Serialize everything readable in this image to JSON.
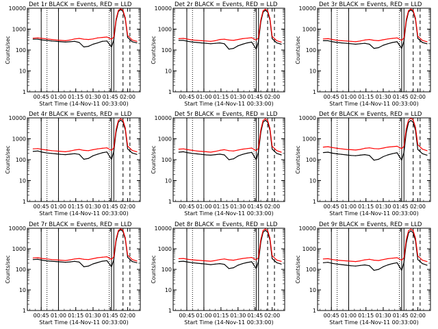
{
  "figure": {
    "title_prefix": "Det",
    "title_suffix": "BLACK = Events, RED = LLD",
    "ylabel": "Counts/sec",
    "xlabel": "Start Time (14-Nov-11 00:33:00)"
  },
  "colors": {
    "events": "#000000",
    "lld": "#ff0000",
    "axis": "#000000"
  },
  "chart_data": [
    {
      "type": "line",
      "detector": "1r",
      "x": [
        "00:38",
        "00:42",
        "00:46",
        "00:50",
        "00:54",
        "00:58",
        "01:02",
        "01:06",
        "01:10",
        "01:14",
        "01:18",
        "01:22",
        "01:26",
        "01:30",
        "01:34",
        "01:38",
        "01:42",
        "01:46",
        "01:48",
        "01:50",
        "01:52",
        "01:54",
        "01:56",
        "01:58",
        "02:00",
        "02:04",
        "02:08"
      ],
      "xticks": [
        "00:45",
        "01:00",
        "01:15",
        "01:30",
        "01:45",
        "02:00"
      ],
      "yticks": [
        "1",
        "10",
        "100",
        "1000",
        "10000"
      ],
      "ylim": [
        1,
        10000
      ],
      "yscale": "log",
      "series": [
        {
          "key": "events",
          "values": [
            330,
            330,
            300,
            290,
            270,
            260,
            250,
            240,
            250,
            260,
            230,
            140,
            150,
            190,
            220,
            260,
            270,
            140,
            300,
            2500,
            7000,
            8500,
            7000,
            3000,
            400,
            250,
            220
          ]
        },
        {
          "key": "lld",
          "values": [
            370,
            380,
            360,
            340,
            320,
            300,
            290,
            280,
            300,
            340,
            360,
            330,
            320,
            340,
            380,
            400,
            420,
            330,
            420,
            3000,
            8000,
            9500,
            8000,
            3500,
            500,
            300,
            260
          ]
        }
      ],
      "vlines_solid": [
        "00:45",
        "01:00",
        "01:46",
        "01:48"
      ],
      "vlines_dotted": [
        "00:50",
        "01:44"
      ],
      "vlines_dashed": [
        "01:56",
        "02:02"
      ]
    },
    {
      "type": "line",
      "detector": "2r",
      "x": [
        "00:38",
        "00:42",
        "00:46",
        "00:50",
        "00:54",
        "00:58",
        "01:02",
        "01:06",
        "01:10",
        "01:14",
        "01:18",
        "01:22",
        "01:26",
        "01:30",
        "01:34",
        "01:38",
        "01:42",
        "01:46",
        "01:48",
        "01:50",
        "01:52",
        "01:54",
        "01:56",
        "01:58",
        "02:00",
        "02:04",
        "02:08"
      ],
      "xticks": [
        "00:45",
        "01:00",
        "01:15",
        "01:30",
        "01:45",
        "02:00"
      ],
      "yticks": [
        "1",
        "10",
        "100",
        "1000",
        "10000"
      ],
      "ylim": [
        1,
        10000
      ],
      "yscale": "log",
      "series": [
        {
          "key": "events",
          "values": [
            290,
            290,
            260,
            240,
            230,
            220,
            210,
            200,
            210,
            220,
            200,
            110,
            120,
            160,
            190,
            220,
            240,
            110,
            260,
            2200,
            6500,
            8000,
            6500,
            2800,
            350,
            220,
            190
          ]
        },
        {
          "key": "lld",
          "values": [
            350,
            360,
            330,
            300,
            290,
            280,
            270,
            260,
            280,
            320,
            330,
            300,
            290,
            320,
            350,
            370,
            390,
            300,
            390,
            2800,
            7500,
            9000,
            7500,
            3300,
            450,
            280,
            240
          ]
        }
      ],
      "vlines_solid": [
        "00:45",
        "01:00",
        "01:46",
        "01:48"
      ],
      "vlines_dotted": [
        "00:50",
        "01:44"
      ],
      "vlines_dashed": [
        "01:56",
        "02:02"
      ]
    },
    {
      "type": "line",
      "detector": "3r",
      "x": [
        "00:38",
        "00:42",
        "00:46",
        "00:50",
        "00:54",
        "00:58",
        "01:02",
        "01:06",
        "01:10",
        "01:14",
        "01:18",
        "01:22",
        "01:26",
        "01:30",
        "01:34",
        "01:38",
        "01:42",
        "01:46",
        "01:48",
        "01:50",
        "01:52",
        "01:54",
        "01:56",
        "01:58",
        "02:00",
        "02:04",
        "02:08"
      ],
      "xticks": [
        "00:45",
        "01:00",
        "01:15",
        "01:30",
        "01:45",
        "02:00"
      ],
      "yticks": [
        "1",
        "10",
        "100",
        "1000",
        "10000"
      ],
      "ylim": [
        1,
        10000
      ],
      "yscale": "log",
      "series": [
        {
          "key": "events",
          "values": [
            280,
            280,
            250,
            230,
            220,
            210,
            200,
            190,
            200,
            210,
            190,
            120,
            130,
            170,
            200,
            230,
            250,
            120,
            270,
            2300,
            6800,
            8200,
            6800,
            2900,
            360,
            230,
            200
          ]
        },
        {
          "key": "lld",
          "values": [
            340,
            350,
            320,
            290,
            280,
            270,
            260,
            250,
            270,
            300,
            320,
            290,
            280,
            310,
            340,
            360,
            380,
            290,
            380,
            2900,
            7800,
            9200,
            7800,
            3400,
            460,
            290,
            250
          ]
        }
      ],
      "vlines_solid": [
        "00:45",
        "01:00",
        "01:46",
        "01:48"
      ],
      "vlines_dotted": [
        "00:50",
        "01:44"
      ],
      "vlines_dashed": [
        "01:56",
        "02:02"
      ]
    },
    {
      "type": "line",
      "detector": "4r",
      "x": [
        "00:38",
        "00:42",
        "00:46",
        "00:50",
        "00:54",
        "00:58",
        "01:02",
        "01:06",
        "01:10",
        "01:14",
        "01:18",
        "01:22",
        "01:26",
        "01:30",
        "01:34",
        "01:38",
        "01:42",
        "01:46",
        "01:48",
        "01:50",
        "01:52",
        "01:54",
        "01:56",
        "01:58",
        "02:00",
        "02:04",
        "02:08"
      ],
      "xticks": [
        "00:45",
        "01:00",
        "01:15",
        "01:30",
        "01:45",
        "02:00"
      ],
      "yticks": [
        "1",
        "10",
        "100",
        "1000",
        "10000"
      ],
      "ylim": [
        1,
        10000
      ],
      "yscale": "log",
      "series": [
        {
          "key": "events",
          "values": [
            250,
            260,
            230,
            210,
            200,
            190,
            180,
            175,
            185,
            195,
            180,
            105,
            115,
            155,
            185,
            215,
            235,
            105,
            250,
            2100,
            6300,
            7800,
            6300,
            2700,
            330,
            210,
            180
          ]
        },
        {
          "key": "lld",
          "values": [
            330,
            340,
            310,
            290,
            270,
            260,
            250,
            240,
            260,
            290,
            310,
            280,
            270,
            300,
            330,
            350,
            370,
            280,
            370,
            2800,
            7600,
            9100,
            7600,
            3300,
            450,
            280,
            240
          ]
        }
      ],
      "vlines_solid": [
        "00:45",
        "01:00",
        "01:46",
        "01:48"
      ],
      "vlines_dotted": [
        "00:50",
        "01:44"
      ],
      "vlines_dashed": [
        "01:56",
        "02:02"
      ]
    },
    {
      "type": "line",
      "detector": "5r",
      "x": [
        "00:38",
        "00:42",
        "00:46",
        "00:50",
        "00:54",
        "00:58",
        "01:02",
        "01:06",
        "01:10",
        "01:14",
        "01:18",
        "01:22",
        "01:26",
        "01:30",
        "01:34",
        "01:38",
        "01:42",
        "01:46",
        "01:48",
        "01:50",
        "01:52",
        "01:54",
        "01:56",
        "01:58",
        "02:00",
        "02:04",
        "02:08"
      ],
      "xticks": [
        "00:45",
        "01:00",
        "01:15",
        "01:30",
        "01:45",
        "02:00"
      ],
      "yticks": [
        "1",
        "10",
        "100",
        "1000",
        "10000"
      ],
      "ylim": [
        1,
        10000
      ],
      "yscale": "log",
      "series": [
        {
          "key": "events",
          "values": [
            230,
            240,
            215,
            200,
            190,
            180,
            170,
            165,
            175,
            185,
            170,
            100,
            110,
            150,
            180,
            205,
            225,
            100,
            240,
            2000,
            6200,
            7700,
            6200,
            2600,
            320,
            200,
            170
          ]
        },
        {
          "key": "lld",
          "values": [
            320,
            330,
            300,
            280,
            260,
            250,
            240,
            230,
            250,
            280,
            300,
            270,
            260,
            290,
            320,
            340,
            360,
            270,
            360,
            2700,
            7500,
            9000,
            7500,
            3200,
            440,
            270,
            230
          ]
        }
      ],
      "vlines_solid": [
        "00:45",
        "01:00",
        "01:46",
        "01:48"
      ],
      "vlines_dotted": [
        "00:50",
        "01:44"
      ],
      "vlines_dashed": [
        "01:56",
        "02:02"
      ]
    },
    {
      "type": "line",
      "detector": "6r",
      "x": [
        "00:38",
        "00:42",
        "00:46",
        "00:50",
        "00:54",
        "00:58",
        "01:02",
        "01:06",
        "01:10",
        "01:14",
        "01:18",
        "01:22",
        "01:26",
        "01:30",
        "01:34",
        "01:38",
        "01:42",
        "01:46",
        "01:48",
        "01:50",
        "01:52",
        "01:54",
        "01:56",
        "01:58",
        "02:00",
        "02:04",
        "02:08"
      ],
      "xticks": [
        "00:45",
        "01:00",
        "01:15",
        "01:30",
        "01:45",
        "02:00"
      ],
      "yticks": [
        "1",
        "10",
        "100",
        "1000",
        "10000"
      ],
      "ylim": [
        1,
        10000
      ],
      "yscale": "log",
      "series": [
        {
          "key": "events",
          "values": [
            220,
            230,
            205,
            190,
            180,
            170,
            160,
            155,
            165,
            175,
            160,
            95,
            105,
            140,
            170,
            195,
            215,
            95,
            230,
            1950,
            6100,
            7600,
            6100,
            2550,
            310,
            195,
            165
          ]
        },
        {
          "key": "lld",
          "values": [
            400,
            420,
            380,
            350,
            330,
            310,
            300,
            290,
            310,
            350,
            370,
            340,
            330,
            360,
            400,
            420,
            440,
            340,
            440,
            3100,
            8000,
            9600,
            8000,
            3600,
            520,
            320,
            270
          ]
        }
      ],
      "vlines_solid": [
        "00:45",
        "01:00",
        "01:46",
        "01:48"
      ],
      "vlines_dotted": [
        "00:50",
        "01:44"
      ],
      "vlines_dashed": [
        "01:56",
        "02:02"
      ]
    },
    {
      "type": "line",
      "detector": "7r",
      "x": [
        "00:38",
        "00:42",
        "00:46",
        "00:50",
        "00:54",
        "00:58",
        "01:02",
        "01:06",
        "01:10",
        "01:14",
        "01:18",
        "01:22",
        "01:26",
        "01:30",
        "01:34",
        "01:38",
        "01:42",
        "01:46",
        "01:48",
        "01:50",
        "01:52",
        "01:54",
        "01:56",
        "01:58",
        "02:00",
        "02:04",
        "02:08"
      ],
      "xticks": [
        "00:45",
        "01:00",
        "01:15",
        "01:30",
        "01:45",
        "02:00"
      ],
      "yticks": [
        "1",
        "10",
        "100",
        "1000",
        "10000"
      ],
      "ylim": [
        1,
        10000
      ],
      "yscale": "log",
      "series": [
        {
          "key": "events",
          "values": [
            300,
            310,
            280,
            260,
            250,
            240,
            230,
            220,
            230,
            245,
            225,
            135,
            145,
            185,
            215,
            250,
            265,
            135,
            290,
            2400,
            6900,
            8400,
            6900,
            2950,
            390,
            240,
            210
          ]
        },
        {
          "key": "lld",
          "values": [
            360,
            370,
            340,
            320,
            300,
            290,
            280,
            270,
            290,
            320,
            340,
            310,
            300,
            330,
            370,
            390,
            410,
            310,
            410,
            2950,
            7900,
            9400,
            7900,
            3450,
            490,
            300,
            255
          ]
        }
      ],
      "vlines_solid": [
        "00:45",
        "01:00",
        "01:46",
        "01:48"
      ],
      "vlines_dotted": [
        "00:50",
        "01:44"
      ],
      "vlines_dashed": [
        "01:56",
        "02:02"
      ]
    },
    {
      "type": "line",
      "detector": "8r",
      "x": [
        "00:38",
        "00:42",
        "00:46",
        "00:50",
        "00:54",
        "00:58",
        "01:02",
        "01:06",
        "01:10",
        "01:14",
        "01:18",
        "01:22",
        "01:26",
        "01:30",
        "01:34",
        "01:38",
        "01:42",
        "01:46",
        "01:48",
        "01:50",
        "01:52",
        "01:54",
        "01:56",
        "01:58",
        "02:00",
        "02:04",
        "02:08"
      ],
      "xticks": [
        "00:45",
        "01:00",
        "01:15",
        "01:30",
        "01:45",
        "02:00"
      ],
      "yticks": [
        "1",
        "10",
        "100",
        "1000",
        "10000"
      ],
      "ylim": [
        1,
        10000
      ],
      "yscale": "log",
      "series": [
        {
          "key": "events",
          "values": [
            240,
            250,
            225,
            210,
            200,
            190,
            180,
            170,
            180,
            190,
            175,
            110,
            120,
            160,
            190,
            215,
            235,
            110,
            250,
            2100,
            6400,
            7900,
            6400,
            2700,
            330,
            210,
            180
          ]
        },
        {
          "key": "lld",
          "values": [
            330,
            340,
            310,
            290,
            280,
            270,
            260,
            250,
            270,
            300,
            320,
            290,
            280,
            310,
            340,
            360,
            380,
            290,
            380,
            2850,
            7700,
            9200,
            7700,
            3350,
            460,
            285,
            245
          ]
        }
      ],
      "vlines_solid": [
        "00:45",
        "01:00",
        "01:46",
        "01:48"
      ],
      "vlines_dotted": [
        "00:50",
        "01:44"
      ],
      "vlines_dashed": [
        "01:56",
        "02:02"
      ]
    },
    {
      "type": "line",
      "detector": "9r",
      "x": [
        "00:38",
        "00:42",
        "00:46",
        "00:50",
        "00:54",
        "00:58",
        "01:02",
        "01:06",
        "01:10",
        "01:14",
        "01:18",
        "01:22",
        "01:26",
        "01:30",
        "01:34",
        "01:38",
        "01:42",
        "01:46",
        "01:48",
        "01:50",
        "01:52",
        "01:54",
        "01:56",
        "01:58",
        "02:00",
        "02:04",
        "02:08"
      ],
      "xticks": [
        "00:45",
        "01:00",
        "01:15",
        "01:30",
        "01:45",
        "02:00"
      ],
      "yticks": [
        "1",
        "10",
        "100",
        "1000",
        "10000"
      ],
      "ylim": [
        1,
        10000
      ],
      "yscale": "log",
      "series": [
        {
          "key": "events",
          "values": [
            210,
            220,
            195,
            180,
            170,
            160,
            150,
            145,
            155,
            165,
            150,
            90,
            100,
            135,
            165,
            190,
            210,
            90,
            220,
            1900,
            6000,
            7500,
            6000,
            2500,
            300,
            190,
            160
          ]
        },
        {
          "key": "lld",
          "values": [
            320,
            330,
            300,
            280,
            270,
            260,
            250,
            240,
            260,
            290,
            310,
            280,
            270,
            300,
            330,
            350,
            370,
            280,
            370,
            2800,
            7600,
            9100,
            7600,
            3300,
            450,
            280,
            240
          ]
        }
      ],
      "vlines_solid": [
        "00:45",
        "01:00",
        "01:46",
        "01:48"
      ],
      "vlines_dotted": [
        "00:50",
        "01:44"
      ],
      "vlines_dashed": [
        "01:56",
        "02:02"
      ]
    }
  ]
}
